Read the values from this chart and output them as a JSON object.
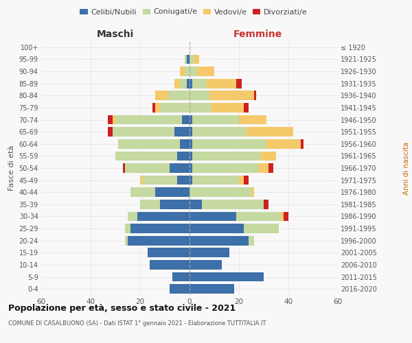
{
  "age_groups": [
    "0-4",
    "5-9",
    "10-14",
    "15-19",
    "20-24",
    "25-29",
    "30-34",
    "35-39",
    "40-44",
    "45-49",
    "50-54",
    "55-59",
    "60-64",
    "65-69",
    "70-74",
    "75-79",
    "80-84",
    "85-89",
    "90-94",
    "95-99",
    "100+"
  ],
  "birth_years": [
    "2016-2020",
    "2011-2015",
    "2006-2010",
    "2001-2005",
    "1996-2000",
    "1991-1995",
    "1986-1990",
    "1981-1985",
    "1976-1980",
    "1971-1975",
    "1966-1970",
    "1961-1965",
    "1956-1960",
    "1951-1955",
    "1946-1950",
    "1941-1945",
    "1936-1940",
    "1931-1935",
    "1926-1930",
    "1921-1925",
    "≤ 1920"
  ],
  "maschi": {
    "celibi": [
      8,
      7,
      16,
      17,
      25,
      24,
      21,
      12,
      14,
      5,
      8,
      5,
      4,
      6,
      3,
      0,
      0,
      1,
      0,
      1,
      0
    ],
    "coniugati": [
      0,
      0,
      0,
      0,
      1,
      2,
      4,
      8,
      10,
      14,
      18,
      25,
      25,
      25,
      27,
      12,
      9,
      3,
      2,
      1,
      0
    ],
    "vedovi": [
      0,
      0,
      0,
      0,
      0,
      0,
      0,
      0,
      0,
      1,
      0,
      0,
      0,
      0,
      1,
      2,
      5,
      2,
      2,
      0,
      0
    ],
    "divorziati": [
      0,
      0,
      0,
      0,
      0,
      0,
      0,
      0,
      0,
      0,
      1,
      0,
      0,
      2,
      2,
      1,
      0,
      0,
      0,
      0,
      0
    ]
  },
  "femmine": {
    "nubili": [
      18,
      30,
      13,
      16,
      24,
      22,
      19,
      5,
      0,
      1,
      1,
      1,
      1,
      1,
      1,
      0,
      0,
      1,
      0,
      0,
      0
    ],
    "coniugate": [
      0,
      0,
      0,
      0,
      2,
      14,
      18,
      25,
      25,
      19,
      27,
      28,
      30,
      22,
      19,
      9,
      8,
      6,
      3,
      2,
      0
    ],
    "vedove": [
      0,
      0,
      0,
      0,
      0,
      0,
      1,
      0,
      1,
      2,
      4,
      6,
      14,
      19,
      11,
      13,
      18,
      12,
      7,
      2,
      0
    ],
    "divorziate": [
      0,
      0,
      0,
      0,
      0,
      0,
      2,
      2,
      0,
      2,
      2,
      0,
      1,
      0,
      0,
      2,
      1,
      2,
      0,
      0,
      0
    ]
  },
  "colors": {
    "celibi": "#3d6fa8",
    "coniugati": "#c5d9a0",
    "vedovi": "#f5c96a",
    "divorziati": "#cc2222"
  },
  "title": "Popolazione per età, sesso e stato civile - 2021",
  "subtitle": "COMUNE DI CASALBUONO (SA) - Dati ISTAT 1° gennaio 2021 - Elaborazione TUTTITALIA.IT",
  "ylabel_left": "Fasce di età",
  "ylabel_right": "Anni di nascita",
  "xlabel_maschi": "Maschi",
  "xlabel_femmine": "Femmine",
  "xlim": 60,
  "bg_color": "#f8f8f8",
  "grid_color": "#cccccc"
}
